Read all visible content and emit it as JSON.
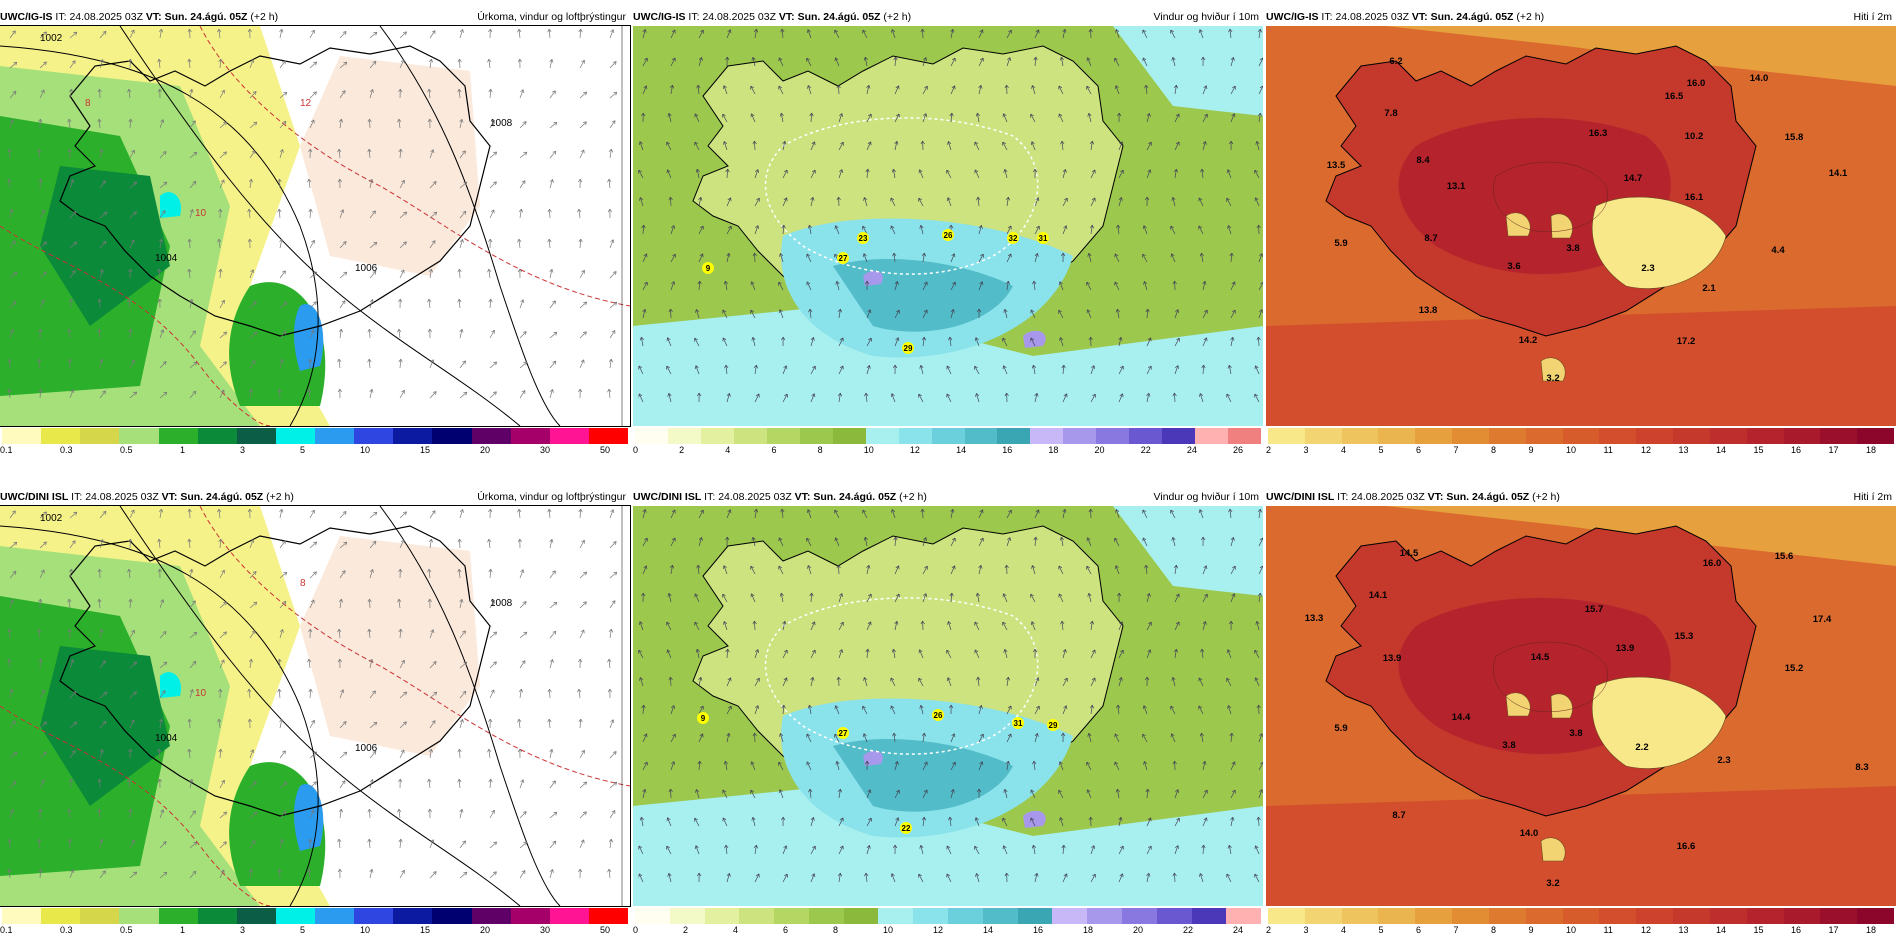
{
  "panels": [
    {
      "id": "p1",
      "model": "UWC/IG-IS",
      "it_label": "IT:",
      "it": "24.08.2025 03Z",
      "vt_label": "VT:",
      "vt": "Sun. 24.ágú. 05Z",
      "lead": "(+2 h)",
      "title": "Úrkoma, vindur og loftþrýstingur",
      "kind": "precip",
      "colorbar": {
        "colors": [
          "#fffbbf",
          "#e8e84a",
          "#d6d64a",
          "#a6e07a",
          "#2cb02c",
          "#0b8a3a",
          "#0b5e45",
          "#00f0e8",
          "#2b9bf0",
          "#2f46e0",
          "#0b1aa0",
          "#000070",
          "#5e0066",
          "#a5006a",
          "#ff1493",
          "#ff0000"
        ],
        "ticks": [
          "0.1",
          "0.3",
          "0.5",
          "1",
          "3",
          "5",
          "10",
          "15",
          "20",
          "30",
          "50"
        ]
      },
      "map_labels": [
        "1002",
        "1004",
        "1006",
        "1008",
        "10",
        "12",
        "8"
      ]
    },
    {
      "id": "p2",
      "model": "UWC/IG-IS",
      "it_label": "IT:",
      "it": "24.08.2025 03Z",
      "vt_label": "VT:",
      "vt": "Sun. 24.ágú. 05Z",
      "lead": "(+2 h)",
      "title": "Vindur og hviður í 10m",
      "kind": "wind",
      "colorbar": {
        "colors": [
          "#fffef0",
          "#f4f9c8",
          "#e3f0a0",
          "#cde380",
          "#b5d662",
          "#9cc84e",
          "#8ab93c",
          "#a8f0f0",
          "#8ae2ea",
          "#6cd0dc",
          "#52bcc8",
          "#3aa6b4",
          "#c8b8f8",
          "#a898ec",
          "#8878e0",
          "#6a58d0",
          "#4a38b8",
          "#ffb0b0",
          "#f08080"
        ],
        "ticks": [
          "0",
          "2",
          "4",
          "6",
          "8",
          "10",
          "12",
          "14",
          "16",
          "18",
          "20",
          "22",
          "24",
          "26"
        ]
      },
      "gusts": [
        "27",
        "23",
        "26",
        "32",
        "31",
        "29",
        "9"
      ]
    },
    {
      "id": "p3",
      "model": "UWC/IG-IS",
      "it_label": "IT:",
      "it": "24.08.2025 03Z",
      "vt_label": "VT:",
      "vt": "Sun. 24.ágú. 05Z",
      "lead": "(+2 h)",
      "title": "Hiti í 2m",
      "kind": "temp",
      "colorbar": {
        "colors": [
          "#f8e88a",
          "#f2d572",
          "#eec45e",
          "#eab44e",
          "#e6a03e",
          "#e28c34",
          "#de7a30",
          "#da6a2e",
          "#d65c2c",
          "#d24e2c",
          "#cc422c",
          "#c5382c",
          "#be2e2c",
          "#b5242c",
          "#a81a2c",
          "#9a102c",
          "#8c062c"
        ],
        "ticks": [
          "2",
          "3",
          "4",
          "5",
          "6",
          "7",
          "8",
          "9",
          "10",
          "11",
          "12",
          "13",
          "14",
          "15",
          "16",
          "17",
          "18"
        ]
      },
      "temps": [
        "6.2",
        "16.0",
        "14.0",
        "7.8",
        "16.5",
        "10.2",
        "16.3",
        "15.8",
        "13.5",
        "8.4",
        "14.7",
        "14.1",
        "13.1",
        "16.1",
        "5.9",
        "8.7",
        "3.6",
        "3.8",
        "2.3",
        "4.4",
        "2.1",
        "13.8",
        "14.2",
        "17.2",
        "3.2"
      ]
    },
    {
      "id": "p4",
      "model": "UWC/DINI ISL",
      "it_label": "IT:",
      "it": "24.08.2025 03Z",
      "vt_label": "VT:",
      "vt": "Sun. 24.ágú. 05Z",
      "lead": "(+2 h)",
      "title": "Úrkoma, vindur og loftþrýstingur",
      "kind": "precip",
      "colorbar": {
        "colors": [
          "#fffbbf",
          "#e8e84a",
          "#d6d64a",
          "#a6e07a",
          "#2cb02c",
          "#0b8a3a",
          "#0b5e45",
          "#00f0e8",
          "#2b9bf0",
          "#2f46e0",
          "#0b1aa0",
          "#000070",
          "#5e0066",
          "#a5006a",
          "#ff1493",
          "#ff0000"
        ],
        "ticks": [
          "0.1",
          "0.3",
          "0.5",
          "1",
          "3",
          "5",
          "10",
          "15",
          "20",
          "30",
          "50"
        ]
      },
      "map_labels": [
        "1002",
        "1004",
        "1006",
        "1008",
        "10",
        "8"
      ]
    },
    {
      "id": "p5",
      "model": "UWC/DINI ISL",
      "it_label": "IT:",
      "it": "24.08.2025 03Z",
      "vt_label": "VT:",
      "vt": "Sun. 24.ágú. 05Z",
      "lead": "(+2 h)",
      "title": "Vindur og hviður í 10m",
      "kind": "wind",
      "colorbar": {
        "colors": [
          "#fffef0",
          "#f4f9c8",
          "#e3f0a0",
          "#cde380",
          "#b5d662",
          "#9cc84e",
          "#8ab93c",
          "#a8f0f0",
          "#8ae2ea",
          "#6cd0dc",
          "#52bcc8",
          "#3aa6b4",
          "#c8b8f8",
          "#a898ec",
          "#8878e0",
          "#6a58d0",
          "#4a38b8",
          "#ffb0b0"
        ],
        "ticks": [
          "0",
          "2",
          "4",
          "6",
          "8",
          "10",
          "12",
          "14",
          "16",
          "18",
          "20",
          "22",
          "24"
        ]
      },
      "gusts": [
        "27",
        "26",
        "31",
        "29",
        "9",
        "22"
      ]
    },
    {
      "id": "p6",
      "model": "UWC/DINI ISL",
      "it_label": "IT:",
      "it": "24.08.2025 03Z",
      "vt_label": "VT:",
      "vt": "Sun. 24.ágú. 05Z",
      "lead": "(+2 h)",
      "title": "Hiti í 2m",
      "kind": "temp",
      "colorbar": {
        "colors": [
          "#f8e88a",
          "#f2d572",
          "#eec45e",
          "#eab44e",
          "#e6a03e",
          "#e28c34",
          "#de7a30",
          "#da6a2e",
          "#d65c2c",
          "#d24e2c",
          "#cc422c",
          "#c5382c",
          "#be2e2c",
          "#b5242c",
          "#a81a2c",
          "#9a102c",
          "#8c062c"
        ],
        "ticks": [
          "2",
          "3",
          "4",
          "5",
          "6",
          "7",
          "8",
          "9",
          "10",
          "11",
          "12",
          "13",
          "14",
          "15",
          "16",
          "17",
          "18"
        ]
      },
      "temps": [
        "14.5",
        "16.0",
        "15.6",
        "14.1",
        "13.3",
        "15.7",
        "17.4",
        "15.3",
        "13.9",
        "13.9",
        "14.5",
        "15.2",
        "5.9",
        "14.4",
        "3.8",
        "3.8",
        "2.2",
        "2.3",
        "8.3",
        "8.7",
        "14.0",
        "16.6",
        "3.2"
      ]
    }
  ]
}
